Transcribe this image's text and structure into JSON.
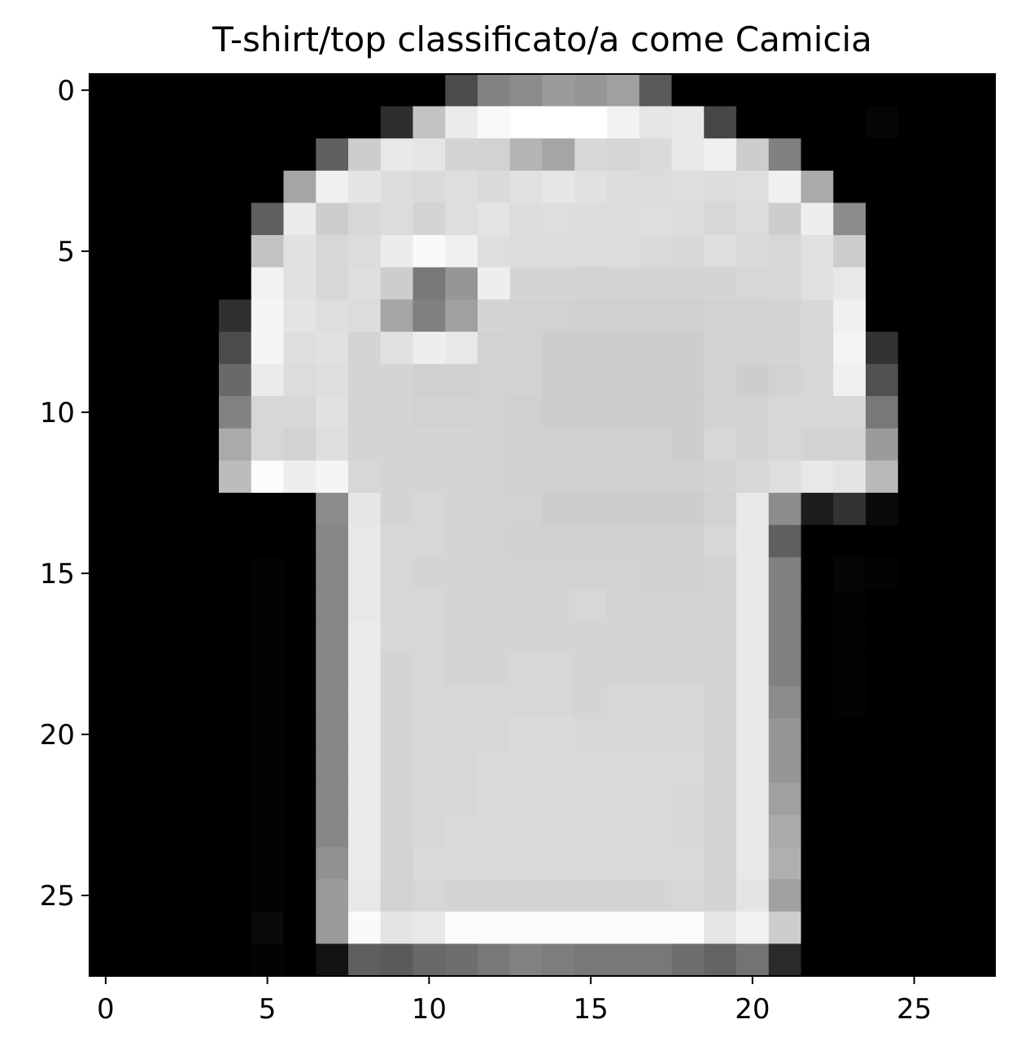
{
  "chart_data": {
    "type": "heatmap",
    "title": "T-shirt/top classificato/a come Camicia",
    "xlabel": "",
    "ylabel": "",
    "colormap": "gray",
    "value_range": [
      0,
      255
    ],
    "xlim": [
      -0.5,
      27.5
    ],
    "ylim": [
      27.5,
      -0.5
    ],
    "x_ticks": [
      0,
      5,
      10,
      15,
      20,
      25
    ],
    "y_ticks": [
      0,
      5,
      10,
      15,
      20,
      25
    ],
    "x_tick_labels": [
      "0",
      "5",
      "10",
      "15",
      "20",
      "25"
    ],
    "y_tick_labels": [
      "0",
      "5",
      "10",
      "15",
      "20",
      "25"
    ],
    "grid": false,
    "legend": "none",
    "pixels": [
      [
        0,
        0,
        0,
        0,
        0,
        0,
        0,
        0,
        0,
        0,
        0,
        75,
        130,
        140,
        155,
        150,
        160,
        90,
        0,
        0,
        0,
        0,
        0,
        0,
        0,
        0,
        0,
        0
      ],
      [
        0,
        0,
        0,
        0,
        0,
        1,
        0,
        0,
        0,
        45,
        195,
        235,
        248,
        255,
        255,
        255,
        242,
        230,
        232,
        70,
        0,
        0,
        0,
        0,
        5,
        0,
        0,
        0
      ],
      [
        0,
        0,
        0,
        0,
        0,
        0,
        0,
        95,
        205,
        232,
        230,
        212,
        210,
        180,
        165,
        215,
        213,
        218,
        232,
        240,
        205,
        128,
        0,
        0,
        0,
        0,
        0,
        0
      ],
      [
        0,
        0,
        0,
        0,
        0,
        0,
        165,
        240,
        228,
        220,
        218,
        222,
        218,
        225,
        230,
        225,
        220,
        220,
        222,
        220,
        222,
        240,
        170,
        0,
        0,
        0,
        0,
        0
      ],
      [
        0,
        0,
        0,
        0,
        0,
        95,
        235,
        205,
        215,
        220,
        212,
        222,
        228,
        220,
        222,
        220,
        220,
        222,
        220,
        215,
        220,
        205,
        238,
        140,
        0,
        0,
        0,
        0
      ],
      [
        0,
        0,
        0,
        0,
        0,
        195,
        225,
        215,
        220,
        235,
        250,
        240,
        222,
        220,
        220,
        220,
        220,
        218,
        215,
        222,
        218,
        215,
        225,
        205,
        0,
        0,
        0,
        0
      ],
      [
        0,
        0,
        0,
        0,
        0,
        242,
        225,
        215,
        222,
        205,
        120,
        150,
        238,
        212,
        212,
        210,
        212,
        212,
        212,
        212,
        215,
        215,
        225,
        232,
        0,
        0,
        0,
        0
      ],
      [
        0,
        0,
        0,
        0,
        48,
        245,
        228,
        222,
        220,
        165,
        128,
        160,
        212,
        210,
        210,
        208,
        208,
        208,
        208,
        210,
        210,
        212,
        215,
        240,
        0,
        0,
        0,
        0
      ],
      [
        0,
        0,
        0,
        0,
        75,
        245,
        222,
        225,
        212,
        225,
        238,
        232,
        210,
        210,
        205,
        205,
        205,
        205,
        205,
        210,
        210,
        212,
        215,
        245,
        50,
        0,
        0,
        0
      ],
      [
        0,
        0,
        0,
        0,
        105,
        235,
        220,
        222,
        212,
        212,
        208,
        208,
        210,
        210,
        205,
        205,
        205,
        205,
        205,
        210,
        205,
        210,
        215,
        240,
        80,
        0,
        0,
        0
      ],
      [
        0,
        0,
        0,
        0,
        130,
        215,
        215,
        225,
        212,
        212,
        210,
        210,
        210,
        208,
        205,
        205,
        205,
        205,
        205,
        210,
        210,
        215,
        215,
        215,
        120,
        0,
        0,
        0
      ],
      [
        0,
        0,
        0,
        0,
        170,
        215,
        210,
        222,
        212,
        212,
        212,
        212,
        210,
        208,
        208,
        208,
        208,
        208,
        205,
        215,
        210,
        215,
        210,
        210,
        155,
        0,
        0,
        0
      ],
      [
        0,
        0,
        0,
        0,
        188,
        252,
        238,
        245,
        215,
        212,
        212,
        212,
        210,
        208,
        208,
        208,
        208,
        208,
        208,
        212,
        215,
        222,
        232,
        228,
        185,
        0,
        0,
        0
      ],
      [
        0,
        0,
        0,
        0,
        0,
        0,
        0,
        140,
        230,
        212,
        215,
        212,
        210,
        210,
        205,
        205,
        205,
        205,
        205,
        210,
        232,
        140,
        28,
        50,
        10,
        0,
        0,
        0
      ],
      [
        0,
        0,
        0,
        0,
        0,
        0,
        0,
        135,
        232,
        215,
        215,
        212,
        210,
        208,
        208,
        208,
        208,
        208,
        208,
        215,
        232,
        95,
        0,
        0,
        0,
        0,
        0,
        0
      ],
      [
        0,
        0,
        0,
        0,
        0,
        3,
        0,
        135,
        232,
        215,
        212,
        212,
        212,
        210,
        210,
        210,
        210,
        208,
        208,
        212,
        232,
        128,
        0,
        5,
        3,
        0,
        0,
        0
      ],
      [
        0,
        0,
        0,
        0,
        0,
        3,
        0,
        135,
        232,
        215,
        215,
        212,
        212,
        212,
        212,
        215,
        210,
        210,
        210,
        212,
        232,
        128,
        0,
        3,
        0,
        0,
        0,
        0
      ],
      [
        0,
        0,
        0,
        0,
        0,
        3,
        0,
        135,
        235,
        215,
        215,
        212,
        212,
        212,
        212,
        212,
        212,
        212,
        212,
        212,
        232,
        128,
        0,
        3,
        0,
        0,
        0,
        0
      ],
      [
        0,
        0,
        0,
        0,
        0,
        3,
        0,
        135,
        235,
        212,
        215,
        212,
        212,
        215,
        215,
        212,
        212,
        212,
        212,
        212,
        232,
        128,
        0,
        3,
        0,
        0,
        0,
        0
      ],
      [
        0,
        0,
        0,
        0,
        0,
        3,
        0,
        135,
        235,
        212,
        215,
        215,
        215,
        215,
        215,
        212,
        215,
        215,
        215,
        212,
        232,
        140,
        0,
        3,
        0,
        0,
        0,
        0
      ],
      [
        0,
        0,
        0,
        0,
        0,
        3,
        0,
        135,
        235,
        212,
        215,
        215,
        215,
        218,
        218,
        215,
        215,
        215,
        215,
        212,
        232,
        150,
        0,
        0,
        0,
        0,
        0,
        0
      ],
      [
        0,
        0,
        0,
        0,
        0,
        3,
        0,
        135,
        235,
        212,
        215,
        215,
        218,
        218,
        218,
        218,
        218,
        218,
        218,
        212,
        232,
        150,
        0,
        0,
        0,
        0,
        0,
        0
      ],
      [
        0,
        0,
        0,
        0,
        0,
        3,
        0,
        135,
        235,
        212,
        215,
        215,
        218,
        218,
        218,
        218,
        218,
        218,
        215,
        212,
        232,
        160,
        0,
        0,
        0,
        0,
        0,
        0
      ],
      [
        0,
        0,
        0,
        0,
        0,
        3,
        0,
        135,
        235,
        212,
        215,
        218,
        218,
        218,
        218,
        218,
        218,
        218,
        215,
        212,
        232,
        170,
        0,
        0,
        0,
        0,
        0,
        0
      ],
      [
        0,
        0,
        0,
        0,
        0,
        3,
        0,
        145,
        235,
        212,
        218,
        218,
        218,
        218,
        218,
        218,
        218,
        218,
        218,
        212,
        232,
        175,
        0,
        0,
        0,
        0,
        0,
        0
      ],
      [
        0,
        0,
        0,
        0,
        0,
        3,
        0,
        155,
        232,
        210,
        215,
        212,
        212,
        212,
        212,
        212,
        212,
        212,
        215,
        212,
        228,
        160,
        0,
        0,
        0,
        0,
        0,
        0
      ],
      [
        0,
        0,
        0,
        0,
        0,
        10,
        0,
        155,
        250,
        228,
        232,
        252,
        252,
        252,
        252,
        252,
        252,
        252,
        252,
        230,
        242,
        205,
        0,
        0,
        0,
        0,
        0,
        0
      ],
      [
        0,
        0,
        0,
        0,
        0,
        3,
        0,
        18,
        95,
        90,
        105,
        110,
        120,
        130,
        125,
        120,
        120,
        120,
        110,
        100,
        115,
        42,
        0,
        0,
        0,
        0,
        0,
        0
      ]
    ]
  }
}
